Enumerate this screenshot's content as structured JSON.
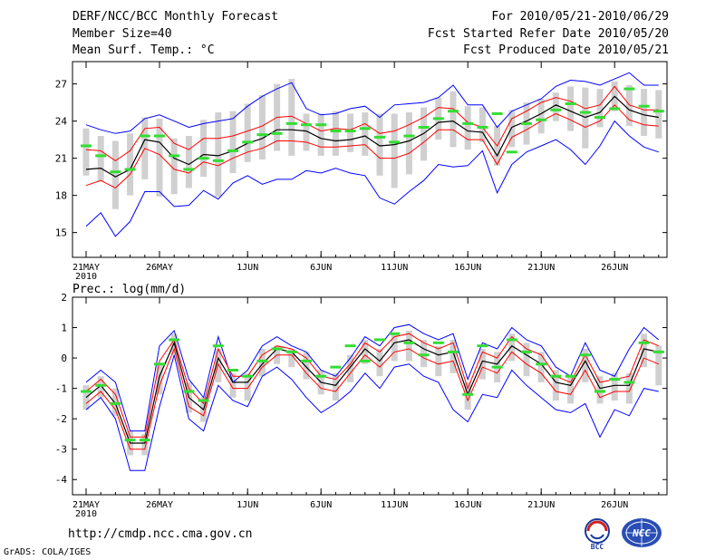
{
  "header": {
    "title": "DERF/NCC/BCC Monthly Forecast",
    "member_size": "Member Size=40",
    "variable": "Mean Surf. Temp.: °C",
    "period": "For 2010/05/21-2010/06/29",
    "start_date": "Fcst Started Refer Date 2010/05/20",
    "produced_date": "Fcst Produced Date 2010/05/21"
  },
  "footer": {
    "url": "http://cmdp.ncc.cma.gov.cn",
    "credit": "GrADS: COLA/IGES",
    "logo_bcc": "BCC",
    "logo_ncc": "NCC"
  },
  "colors": {
    "ensemble_mean": "#000000",
    "spread_band": "#ff0000",
    "extreme_envelope": "#0000ff",
    "member_box": "#d0d0d0",
    "median_marker": "#33dd33"
  },
  "chart_data": [
    {
      "type": "line",
      "title": "Mean Surf. Temp.: °C",
      "xlabel": "",
      "ylabel": "",
      "year_label": "2010",
      "x_tick_labels": [
        "21MAY",
        "26MAY",
        "1JUN",
        "6JUN",
        "11JUN",
        "16JUN",
        "21JUN",
        "26JUN"
      ],
      "x_tick_days": [
        0,
        5,
        11,
        16,
        21,
        26,
        31,
        36
      ],
      "y_ticks": [
        15,
        18,
        21,
        24,
        27
      ],
      "ylim": [
        13,
        28.8
      ],
      "days": 40,
      "series": [
        {
          "name": "max",
          "values": [
            23.7,
            23.3,
            23.0,
            23.2,
            24.2,
            24.5,
            24.0,
            23.5,
            23.8,
            24.0,
            24.2,
            25.2,
            26.0,
            26.6,
            27.1,
            25.0,
            24.5,
            24.6,
            25.0,
            25.2,
            24.3,
            25.3,
            25.4,
            25.5,
            25.9,
            26.9,
            25.3,
            25.3,
            23.5,
            24.8,
            25.3,
            25.8,
            26.8,
            27.3,
            27.2,
            26.9,
            27.4,
            27.9,
            26.9,
            26.9
          ]
        },
        {
          "name": "mean_plus_sd",
          "values": [
            21.7,
            21.6,
            20.8,
            21.6,
            23.4,
            23.5,
            22.2,
            21.7,
            22.6,
            22.6,
            22.8,
            23.2,
            23.6,
            24.3,
            24.4,
            23.8,
            23.2,
            23.4,
            23.3,
            23.8,
            23.0,
            23.2,
            23.7,
            24.3,
            25.1,
            25.0,
            23.9,
            23.5,
            22.0,
            24.2,
            24.8,
            25.5,
            25.9,
            25.6,
            25.0,
            25.3,
            26.8,
            25.3,
            24.9,
            24.9
          ]
        },
        {
          "name": "ensemble_mean",
          "values": [
            20.1,
            20.2,
            19.5,
            20.1,
            22.5,
            22.3,
            21.0,
            20.5,
            21.3,
            21.2,
            21.6,
            22.2,
            22.6,
            23.3,
            23.3,
            23.2,
            22.6,
            22.4,
            22.5,
            22.8,
            22.0,
            22.1,
            22.4,
            23.0,
            23.9,
            24.0,
            23.2,
            23.1,
            21.2,
            23.5,
            24.0,
            24.6,
            25.3,
            24.8,
            24.3,
            24.7,
            26.0,
            24.9,
            24.5,
            24.3
          ]
        },
        {
          "name": "mean_minus_sd",
          "values": [
            18.8,
            19.2,
            18.6,
            19.7,
            21.8,
            21.3,
            20.1,
            19.8,
            20.7,
            20.4,
            21.0,
            21.5,
            21.8,
            22.4,
            22.4,
            22.3,
            21.9,
            21.9,
            22.0,
            22.1,
            21.0,
            21.0,
            21.4,
            22.3,
            23.3,
            23.3,
            22.5,
            22.5,
            20.5,
            22.7,
            23.3,
            24.0,
            24.6,
            24.1,
            23.5,
            24.0,
            25.3,
            24.1,
            23.7,
            23.6
          ]
        },
        {
          "name": "min",
          "values": [
            15.5,
            16.6,
            14.7,
            15.9,
            18.3,
            18.3,
            17.1,
            17.2,
            18.4,
            17.7,
            19.0,
            19.6,
            18.9,
            19.3,
            19.3,
            20.0,
            19.8,
            20.2,
            19.8,
            19.6,
            17.8,
            17.3,
            18.3,
            19.2,
            20.5,
            20.3,
            20.4,
            21.6,
            18.2,
            20.5,
            21.5,
            22.0,
            22.5,
            21.7,
            20.5,
            22.0,
            24.0,
            22.8,
            21.9,
            21.5
          ]
        },
        {
          "name": "box_top",
          "values": [
            23.4,
            22.8,
            22.4,
            23.0,
            24.3,
            24.2,
            22.6,
            22.8,
            24.1,
            24.7,
            24.8,
            25.4,
            26.1,
            27.0,
            27.4,
            24.6,
            24.6,
            24.8,
            24.6,
            24.7,
            24.6,
            24.6,
            24.7,
            25.1,
            25.9,
            26.4,
            25.2,
            25.1,
            23.6,
            24.9,
            25.5,
            25.8,
            26.3,
            26.8,
            26.7,
            26.6,
            27.2,
            26.9,
            26.6,
            26.5
          ]
        },
        {
          "name": "box_bottom",
          "values": [
            19.6,
            19.1,
            16.9,
            18.0,
            19.3,
            17.9,
            18.1,
            18.6,
            19.5,
            17.9,
            19.8,
            20.7,
            20.9,
            21.6,
            21.2,
            21.6,
            21.2,
            21.2,
            21.5,
            21.2,
            19.6,
            18.6,
            19.7,
            20.8,
            22.5,
            21.9,
            21.7,
            22.3,
            20.4,
            21.9,
            22.1,
            23.0,
            24.0,
            23.2,
            21.8,
            23.5,
            24.8,
            23.6,
            22.8,
            22.6
          ]
        },
        {
          "name": "median_marker",
          "values": [
            22.0,
            21.2,
            19.9,
            20.1,
            22.8,
            22.8,
            21.2,
            20.1,
            21.0,
            20.8,
            21.6,
            22.3,
            22.9,
            23.0,
            23.8,
            23.7,
            23.7,
            23.2,
            23.2,
            23.4,
            22.7,
            22.3,
            22.8,
            23.5,
            24.2,
            24.8,
            23.8,
            23.5,
            24.6,
            21.5,
            23.8,
            24.1,
            24.9,
            25.4,
            24.7,
            24.3,
            25.0,
            26.6,
            25.2,
            24.8
          ]
        }
      ]
    },
    {
      "type": "line",
      "title": "Prec.: log(mm/d)",
      "xlabel": "",
      "ylabel": "",
      "year_label": "2010",
      "x_tick_labels": [
        "21MAY",
        "26MAY",
        "1JUN",
        "6JUN",
        "11JUN",
        "16JUN",
        "21JUN",
        "26JUN"
      ],
      "x_tick_days": [
        0,
        5,
        11,
        16,
        21,
        26,
        31,
        36
      ],
      "y_ticks": [
        -4,
        -3,
        -2,
        -1,
        0,
        1,
        2
      ],
      "ylim": [
        -4.5,
        2
      ],
      "days": 40,
      "series": [
        {
          "name": "max",
          "values": [
            -0.8,
            -0.4,
            -0.8,
            -2.4,
            -2.4,
            0.4,
            0.9,
            -0.7,
            -1.3,
            0.7,
            -0.8,
            -0.4,
            0.4,
            0.7,
            0.4,
            0.2,
            -0.4,
            -0.6,
            0.0,
            0.7,
            0.4,
            1.0,
            1.1,
            0.8,
            0.6,
            0.8,
            -0.7,
            0.5,
            0.3,
            1.0,
            0.6,
            0.4,
            -0.3,
            -0.6,
            0.5,
            -0.4,
            -0.6,
            0.3,
            1.0,
            0.6
          ]
        },
        {
          "name": "mean_plus_sd",
          "values": [
            -1.1,
            -0.7,
            -1.2,
            -2.6,
            -2.6,
            -0.1,
            0.6,
            -1.0,
            -1.5,
            0.3,
            -0.6,
            -0.6,
            0.1,
            0.4,
            0.3,
            0.0,
            -0.6,
            -0.7,
            -0.2,
            0.5,
            0.2,
            0.7,
            0.8,
            0.5,
            0.3,
            0.5,
            -1.0,
            0.2,
            0.0,
            0.7,
            0.3,
            0.1,
            -0.6,
            -0.8,
            0.1,
            -0.8,
            -0.7,
            -0.6,
            0.6,
            0.4
          ]
        },
        {
          "name": "ensemble_mean",
          "values": [
            -1.3,
            -0.9,
            -1.5,
            -2.8,
            -2.8,
            -0.6,
            0.5,
            -1.3,
            -1.7,
            0.0,
            -0.8,
            -0.8,
            -0.2,
            0.3,
            0.2,
            -0.3,
            -0.8,
            -0.9,
            -0.3,
            0.3,
            -0.1,
            0.5,
            0.6,
            0.3,
            0.1,
            0.2,
            -1.2,
            -0.1,
            -0.2,
            0.4,
            0.1,
            -0.2,
            -0.8,
            -0.9,
            -0.1,
            -1.0,
            -0.9,
            -0.9,
            0.3,
            0.2
          ]
        },
        {
          "name": "mean_minus_sd",
          "values": [
            -1.5,
            -1.1,
            -1.7,
            -3.0,
            -3.0,
            -0.9,
            0.3,
            -1.6,
            -1.9,
            -0.2,
            -1.0,
            -1.0,
            -0.3,
            0.1,
            0.1,
            -0.5,
            -1.0,
            -1.1,
            -0.5,
            0.1,
            -0.3,
            0.2,
            0.3,
            0.0,
            -0.2,
            -0.1,
            -1.4,
            -0.3,
            -0.5,
            0.2,
            -0.2,
            -0.5,
            -1.1,
            -1.2,
            -0.4,
            -1.3,
            -1.1,
            -1.1,
            0.0,
            -0.2
          ]
        },
        {
          "name": "min",
          "values": [
            -1.7,
            -1.3,
            -2.0,
            -3.7,
            -3.7,
            -1.6,
            0.1,
            -2.0,
            -2.4,
            -0.9,
            -1.4,
            -1.6,
            -0.6,
            -0.3,
            -0.7,
            -1.3,
            -1.8,
            -1.5,
            -1.1,
            -0.5,
            -1.0,
            -0.3,
            -0.2,
            -0.6,
            -0.8,
            -1.7,
            -2.1,
            -1.2,
            -1.3,
            -0.4,
            -0.9,
            -1.3,
            -1.7,
            -1.8,
            -1.5,
            -2.6,
            -1.7,
            -1.9,
            -1.0,
            -1.1
          ]
        },
        {
          "name": "box_top",
          "values": [
            -0.9,
            -0.6,
            -1.0,
            -2.4,
            -2.5,
            -0.2,
            0.8,
            -0.8,
            -1.3,
            0.3,
            -0.5,
            -0.5,
            0.3,
            0.4,
            0.3,
            0.2,
            -0.4,
            -0.5,
            0.1,
            0.6,
            0.3,
            0.8,
            0.9,
            0.6,
            0.4,
            0.6,
            -0.8,
            0.3,
            0.2,
            0.8,
            0.5,
            0.2,
            -0.4,
            -0.6,
            0.3,
            -0.6,
            -0.5,
            -0.5,
            0.8,
            0.4
          ]
        },
        {
          "name": "box_bottom",
          "values": [
            -1.7,
            -1.3,
            -1.9,
            -3.2,
            -3.2,
            -1.2,
            0.1,
            -1.8,
            -2.1,
            -0.8,
            -1.3,
            -1.4,
            -0.6,
            -0.2,
            -0.3,
            -0.7,
            -1.2,
            -1.4,
            -0.8,
            -0.2,
            -0.6,
            -0.1,
            -0.1,
            -0.3,
            -0.6,
            -0.5,
            -1.7,
            -0.7,
            -0.8,
            -0.1,
            -0.6,
            -0.8,
            -1.4,
            -1.5,
            -0.8,
            -1.5,
            -1.4,
            -1.5,
            -0.3,
            -0.9
          ]
        },
        {
          "name": "median_marker",
          "values": [
            -1.1,
            -0.9,
            -1.5,
            -2.7,
            -2.7,
            -0.2,
            0.6,
            -1.1,
            -1.4,
            0.4,
            -0.4,
            -0.6,
            -0.1,
            0.3,
            0.2,
            -0.1,
            -0.6,
            -0.3,
            0.4,
            -0.1,
            0.6,
            0.8,
            0.5,
            0.1,
            0.5,
            0.2,
            -1.2,
            0.4,
            -0.3,
            0.6,
            0.2,
            -0.2,
            -0.6,
            -0.6,
            0.1,
            -1.1,
            -0.7,
            -0.8,
            0.5,
            0.2
          ]
        }
      ]
    }
  ]
}
